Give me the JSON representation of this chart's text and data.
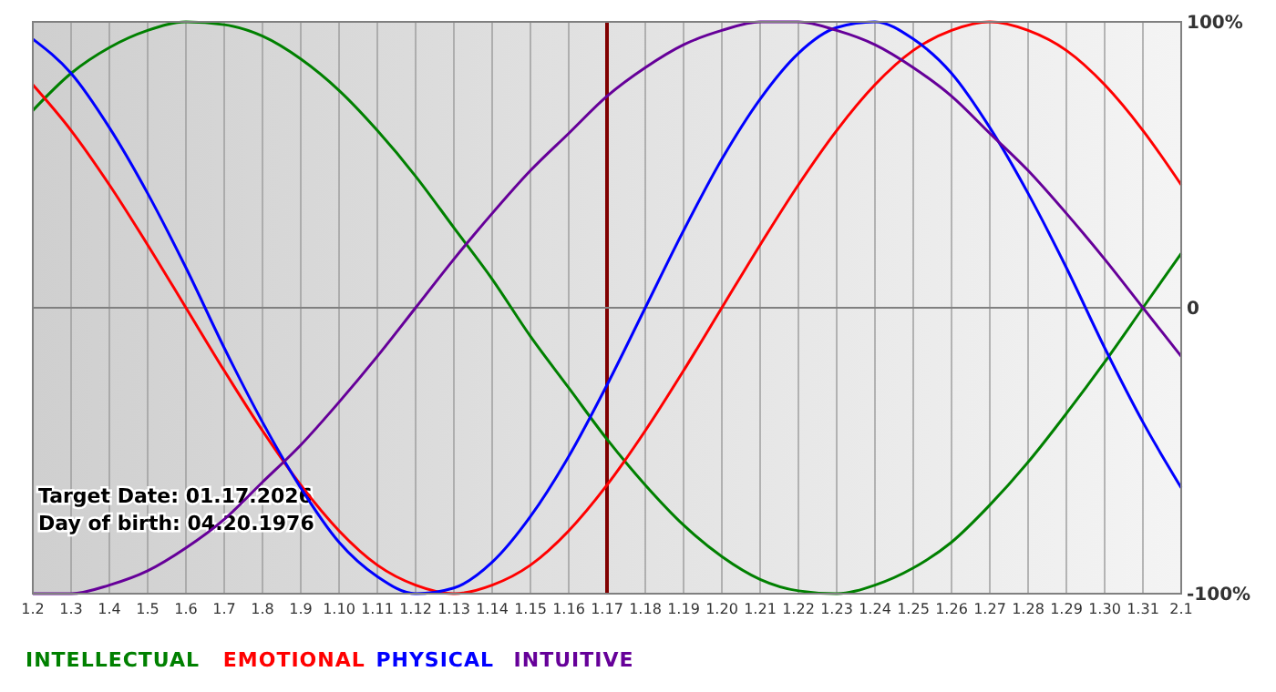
{
  "chart_data": {
    "type": "line",
    "categories": [
      "1.2",
      "1.3",
      "1.4",
      "1.5",
      "1.6",
      "1.7",
      "1.8",
      "1.9",
      "1.10",
      "1.11",
      "1.12",
      "1.13",
      "1.14",
      "1.15",
      "1.16",
      "1.17",
      "1.18",
      "1.19",
      "1.20",
      "1.21",
      "1.22",
      "1.23",
      "1.24",
      "1.25",
      "1.26",
      "1.27",
      "1.28",
      "1.29",
      "1.30",
      "1.31",
      "2.1"
    ],
    "series": [
      {
        "name": "INTELLECTUAL",
        "color": "#008000",
        "values": [
          69,
          82,
          91,
          97,
          100,
          99,
          95,
          87,
          76,
          62,
          46,
          28,
          10,
          -10,
          -28,
          -46,
          -62,
          -76,
          -87,
          -95,
          -99,
          -100,
          -97,
          -91,
          -82,
          -69,
          -54,
          -37,
          -19,
          0,
          19
        ]
      },
      {
        "name": "EMOTIONAL",
        "color": "#ff0000",
        "values": [
          78,
          62,
          43,
          22,
          0,
          -22,
          -43,
          -62,
          -78,
          -90,
          -97,
          -100,
          -97,
          -90,
          -78,
          -62,
          -43,
          -22,
          0,
          22,
          43,
          62,
          78,
          90,
          97,
          100,
          97,
          90,
          78,
          62,
          43
        ]
      },
      {
        "name": "PHYSICAL",
        "color": "#0000ff",
        "values": [
          94,
          82,
          63,
          40,
          14,
          -14,
          -40,
          -63,
          -82,
          -94,
          -100,
          -98,
          -89,
          -73,
          -52,
          -27,
          0,
          27,
          52,
          73,
          89,
          98,
          100,
          94,
          82,
          63,
          40,
          14,
          -14,
          -40,
          -63
        ]
      },
      {
        "name": "INTUITIVE",
        "color": "#660099",
        "values": [
          -100,
          -100,
          -97,
          -92,
          -84,
          -74,
          -61,
          -48,
          -33,
          -17,
          0,
          17,
          33,
          48,
          61,
          74,
          84,
          92,
          97,
          100,
          100,
          97,
          92,
          84,
          74,
          61,
          48,
          33,
          17,
          0,
          -17
        ]
      }
    ],
    "ylim": [
      -100,
      100
    ],
    "yticks": [
      {
        "value": -100,
        "label": "-100%"
      },
      0,
      {
        "value": 100,
        "label": "100%"
      }
    ],
    "grid": "x",
    "legend": "bottom left",
    "marker": "none",
    "line_style": "solid",
    "ref_lines": [
      {
        "axis": "x",
        "value": "1.17",
        "color": "#800000"
      },
      {
        "axis": "y",
        "value": 0,
        "color": "#808080"
      }
    ],
    "annotations": [
      "Target Date: 01.17.2026",
      "Day of birth: 04.20.1976"
    ]
  }
}
